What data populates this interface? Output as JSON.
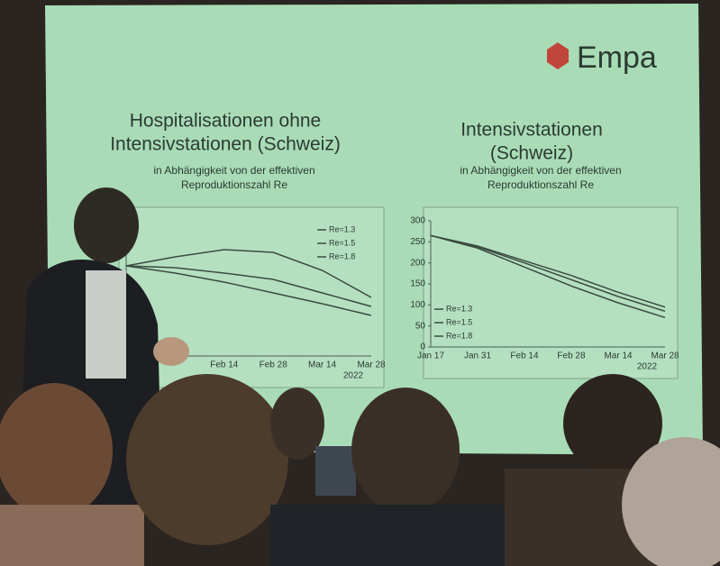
{
  "logo": "Empa",
  "chart_data": [
    {
      "type": "line",
      "title": [
        "Hospitalisationen ohne",
        "Intensivstationen (Schweiz)"
      ],
      "subtitle": [
        "in Abhängigkeit von der effektiven",
        "Reproduktionszahl Re"
      ],
      "categories": [
        null,
        null,
        "Feb 14",
        "Feb 28",
        "Mar 14",
        "Mar 28"
      ],
      "x_label": "2022",
      "ylim": [
        0,
        150
      ],
      "legend": "top-right",
      "series": [
        {
          "name": "Re=1.3",
          "color": "#3c4a40",
          "values": [
            100,
            110,
            118,
            115,
            95,
            65
          ]
        },
        {
          "name": "Re=1.5",
          "color": "#3c4a40",
          "values": [
            100,
            98,
            92,
            85,
            70,
            55
          ]
        },
        {
          "name": "Re=1.8",
          "color": "#3c4a40",
          "values": [
            100,
            92,
            82,
            70,
            58,
            45
          ]
        }
      ]
    },
    {
      "type": "line",
      "title": [
        "Intensivstationen",
        "(Schweiz)"
      ],
      "subtitle": [
        "in Abhängigkeit von der effektiven",
        "Reproduktionszahl Re"
      ],
      "categories": [
        "Jan 17",
        "Jan 31",
        "Feb 14",
        "Feb 28",
        "Mar 14",
        "Mar 28"
      ],
      "x_label": "2022",
      "ylim": [
        0,
        300
      ],
      "yticks": [
        0,
        50,
        100,
        150,
        200,
        250,
        300
      ],
      "legend": "bottom-left",
      "series": [
        {
          "name": "Re=1.3",
          "color": "#3c4a40",
          "values": [
            265,
            240,
            205,
            170,
            130,
            95
          ]
        },
        {
          "name": "Re=1.5",
          "color": "#3c4a40",
          "values": [
            265,
            238,
            200,
            160,
            120,
            85
          ]
        },
        {
          "name": "Re=1.8",
          "color": "#3c4a40",
          "values": [
            265,
            235,
            190,
            145,
            105,
            70
          ]
        }
      ]
    }
  ]
}
